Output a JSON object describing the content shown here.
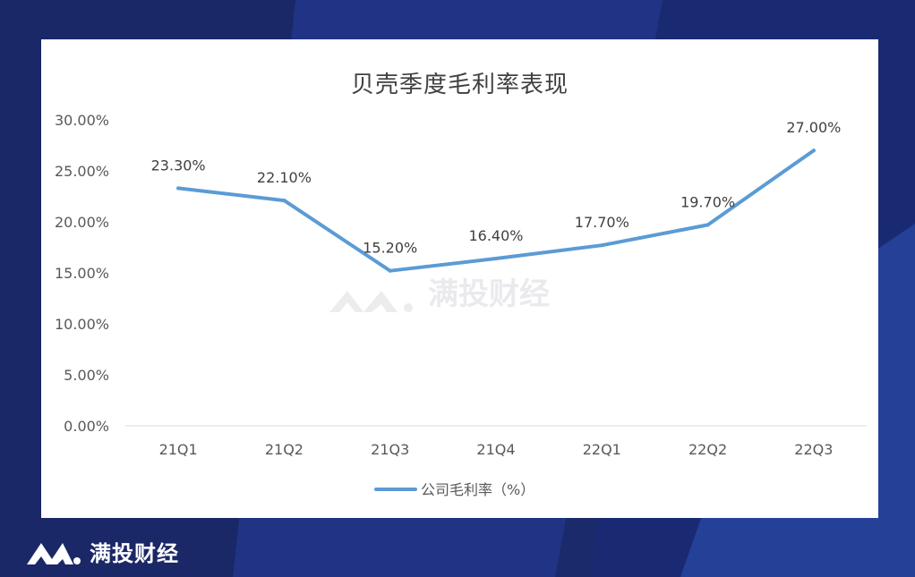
{
  "chart_data": {
    "type": "line",
    "title": "贝壳季度毛利率表现",
    "categories": [
      "21Q1",
      "21Q2",
      "21Q3",
      "21Q4",
      "22Q1",
      "22Q2",
      "22Q3"
    ],
    "series": [
      {
        "name": "公司毛利率（%）",
        "values": [
          23.3,
          22.1,
          15.2,
          16.4,
          17.7,
          19.7,
          27.0
        ],
        "labels": [
          "23.30%",
          "22.10%",
          "15.20%",
          "16.40%",
          "17.70%",
          "19.70%",
          "27.00%"
        ],
        "color": "#5b9bd5"
      }
    ],
    "yticks": [
      "0.00%",
      "5.00%",
      "10.00%",
      "15.00%",
      "20.00%",
      "25.00%",
      "30.00%"
    ],
    "ylim": [
      0,
      30
    ],
    "grid": false,
    "legend": "bottom"
  },
  "watermark": {
    "text": "满投财经"
  },
  "brand": {
    "text": "满投财经"
  },
  "colors": {
    "background": "#1b2a6b",
    "card": "#ffffff",
    "line": "#5b9bd5"
  }
}
